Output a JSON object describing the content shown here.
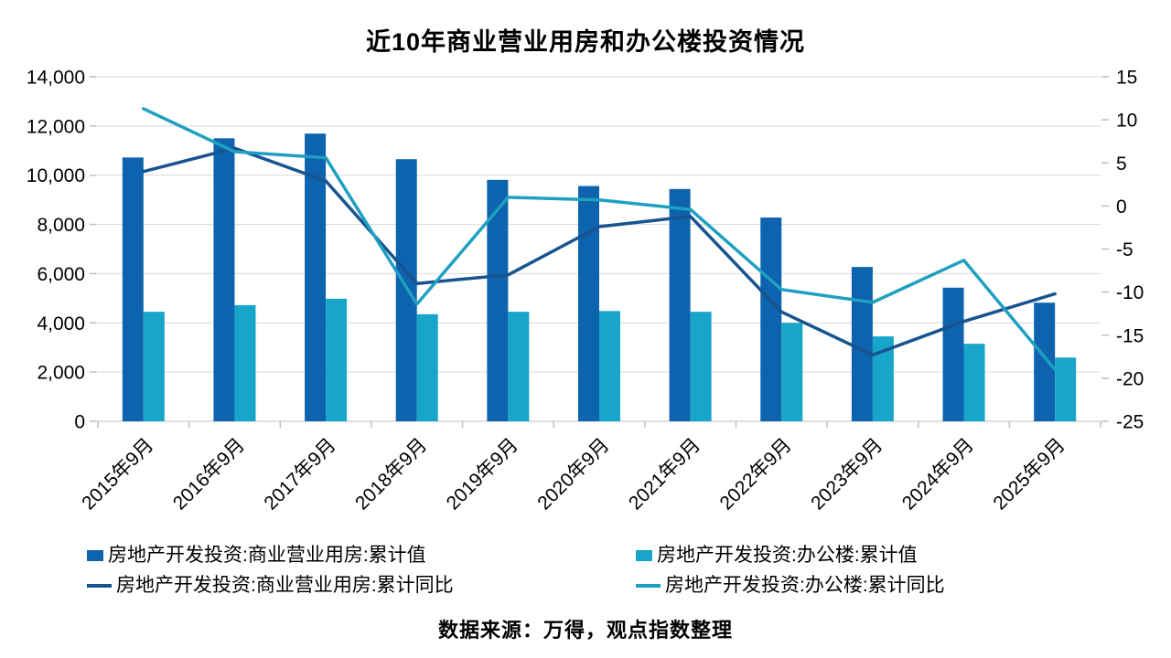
{
  "chart_data": {
    "type": "combo-bar-line",
    "title": "近10年商业营业用房和办公楼投资情况",
    "source_note": "数据来源：万得，观点指数整理",
    "categories": [
      "2015年9月",
      "2016年9月",
      "2017年9月",
      "2018年9月",
      "2019年9月",
      "2020年9月",
      "2021年9月",
      "2022年9月",
      "2023年9月",
      "2024年9月",
      "2025年9月"
    ],
    "bar_series": [
      {
        "name": "房地产开发投资:商业营业用房:累计值",
        "color": "#0D63AD",
        "axis": "left",
        "values": [
          10720,
          11500,
          11690,
          10650,
          9810,
          9560,
          9440,
          8280,
          6270,
          5430,
          4820
        ]
      },
      {
        "name": "房地产开发投资:办公楼:累计值",
        "color": "#17A5C9",
        "axis": "left",
        "values": [
          4450,
          4720,
          4980,
          4350,
          4450,
          4480,
          4450,
          4000,
          3450,
          3150,
          2590
        ]
      }
    ],
    "line_series": [
      {
        "name": "房地产开发投资:商业营业用房:累计同比",
        "color": "#17548F",
        "axis": "right",
        "values": [
          4.0,
          6.7,
          2.9,
          -9.0,
          -8.0,
          -2.4,
          -1.2,
          -12.3,
          -17.3,
          -13.4,
          -10.2
        ]
      },
      {
        "name": "房地产开发投资:办公楼:累计同比",
        "color": "#1FA0C0",
        "axis": "right",
        "values": [
          11.3,
          6.3,
          5.6,
          -11.4,
          1.0,
          0.7,
          -0.4,
          -9.7,
          -11.2,
          -6.3,
          -19.0
        ]
      }
    ],
    "left_axis": {
      "min": 0,
      "max": 14000,
      "step": 2000,
      "tick_labels": [
        "0",
        "2,000",
        "4,000",
        "6,000",
        "8,000",
        "10,000",
        "12,000",
        "14,000"
      ]
    },
    "right_axis": {
      "min": -25,
      "max": 15,
      "step": 5,
      "tick_labels": [
        "-25",
        "-20",
        "-15",
        "-10",
        "-5",
        "0",
        "5",
        "10",
        "15"
      ]
    },
    "grid": true,
    "legend_position": "bottom",
    "grid_color": "#D9D9D9",
    "axis_color": "#BFBFBF",
    "text_color": "#000000"
  }
}
